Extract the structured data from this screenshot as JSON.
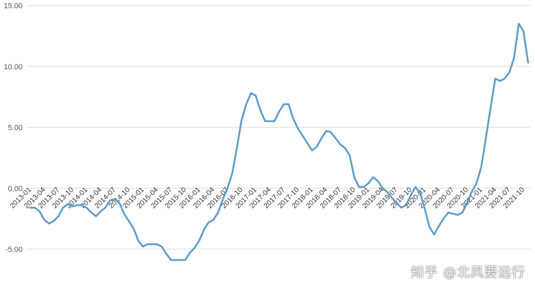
{
  "chart_data": {
    "type": "line",
    "title": "",
    "xlabel": "",
    "ylabel": "",
    "ylim": [
      -5,
      15
    ],
    "yticks": [
      -5,
      0,
      5,
      10,
      15
    ],
    "ytick_labels": [
      "-5.00",
      "0.00",
      "5.00",
      "10.00",
      "15.00"
    ],
    "grid": true,
    "legend": "none",
    "series_color": "#5b9bc8",
    "x_tick_labels": [
      "2013-01",
      "2013-04",
      "2013-07",
      "2013-10",
      "2014-01",
      "2014-04",
      "2014-07",
      "2014-10",
      "2015-01",
      "2015-04",
      "2015-07",
      "2015-10",
      "2016-01",
      "2016-04",
      "2016-07",
      "2016-10",
      "2017-01",
      "2017-04",
      "2017-07",
      "2017-10",
      "2018-01",
      "2018-04",
      "2018-07",
      "2018-10",
      "2019-01",
      "2019-04",
      "2019-07",
      "2019-10",
      "2020-01",
      "2020-04",
      "2020-07",
      "2020-10",
      "2021-01",
      "2021-04",
      "2021-07",
      "2021-10"
    ],
    "series": [
      {
        "values": [
          -1.6,
          -1.6,
          -1.9,
          -2.6,
          -2.9,
          -2.7,
          -2.3,
          -1.6,
          -1.3,
          -1.5,
          -1.4,
          -1.4,
          -1.6,
          -2.0,
          -2.3,
          -1.9,
          -1.6,
          -1.0,
          -0.9,
          -1.2,
          -2.1,
          -2.7,
          -3.3,
          -4.3,
          -4.8,
          -4.6,
          -4.6,
          -4.6,
          -4.8,
          -5.4,
          -5.9,
          -5.9,
          -5.9,
          -5.9,
          -5.3,
          -4.9,
          -4.3,
          -3.4,
          -2.8,
          -2.6,
          -2.0,
          -0.9,
          0.0,
          1.2,
          3.3,
          5.6,
          6.9,
          7.8,
          7.6,
          6.4,
          5.5,
          5.5,
          5.5,
          6.3,
          6.9,
          6.9,
          5.7,
          4.9,
          4.3,
          3.7,
          3.1,
          3.4,
          4.1,
          4.7,
          4.6,
          4.1,
          3.6,
          3.3,
          2.7,
          0.9,
          0.1,
          0.1,
          0.4,
          0.9,
          0.6,
          0.0,
          -0.3,
          -0.8,
          -1.2,
          -1.6,
          -1.4,
          -0.6,
          0.1,
          -0.4,
          -1.7,
          -3.2,
          -3.8,
          -3.1,
          -2.5,
          -2.0,
          -2.1,
          -2.2,
          -2.0,
          -1.2,
          -0.3,
          0.4,
          1.7,
          4.1,
          6.6,
          9.0,
          8.8,
          9.0,
          9.5,
          10.7,
          13.5,
          12.9,
          10.3
        ]
      }
    ]
  },
  "watermark": "知乎 @北风要远行"
}
